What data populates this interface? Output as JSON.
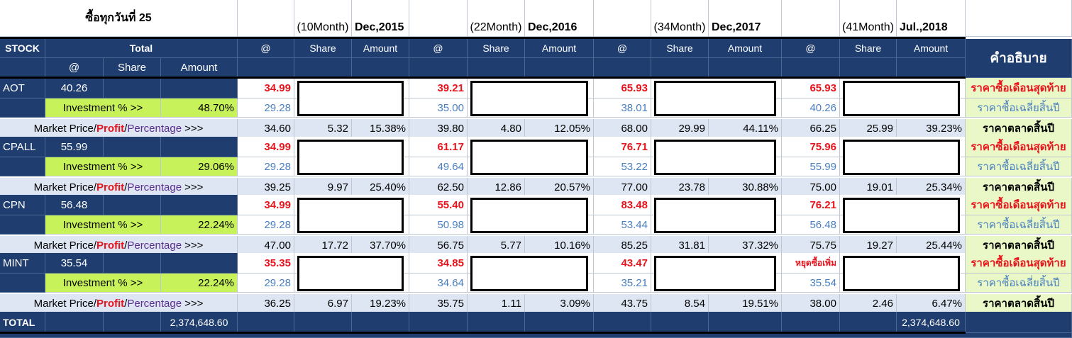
{
  "header": {
    "title": "ซื้อทุกวันที่ 25",
    "periods": [
      {
        "months": "(10Month)",
        "date": "Dec,2015"
      },
      {
        "months": "(22Month)",
        "date": "Dec,2016"
      },
      {
        "months": "(34Month)",
        "date": "Dec,2017"
      },
      {
        "months": "(41Month)",
        "date": "Jul.,2018"
      }
    ]
  },
  "columns": {
    "stock": "STOCK",
    "total": "Total",
    "at": "@",
    "share": "Share",
    "amount": "Amount",
    "description": "คำอธิบาย"
  },
  "labels": {
    "investment": "Investment % >>",
    "market_price": "Market Price",
    "profit": "Profit",
    "percentage": "Percentage",
    "arrows": ">>>",
    "sep": " / ",
    "desc_last_month": "ราคาซื้อเดือนสุดท้าย",
    "desc_avg_year": "ราคาซื้อเฉลี่ยสิ้นปี",
    "desc_market_year": "ราคาตลาดสิ้นปี"
  },
  "stocks": [
    {
      "name": "AOT",
      "avg": "40.26",
      "investment_pct": "48.70%",
      "periods": [
        {
          "last": "34.99",
          "avg": "29.28",
          "market": "34.60",
          "profit": "5.32",
          "pct": "15.38%"
        },
        {
          "last": "39.21",
          "avg": "35.00",
          "market": "39.80",
          "profit": "4.80",
          "pct": "12.05%"
        },
        {
          "last": "65.93",
          "avg": "38.01",
          "market": "68.00",
          "profit": "29.99",
          "pct": "44.11%"
        },
        {
          "last": "65.93",
          "avg": "40.26",
          "market": "66.25",
          "profit": "25.99",
          "pct": "39.23%"
        }
      ]
    },
    {
      "name": "CPALL",
      "avg": "55.99",
      "investment_pct": "29.06%",
      "periods": [
        {
          "last": "34.99",
          "avg": "29.28",
          "market": "39.25",
          "profit": "9.97",
          "pct": "25.40%"
        },
        {
          "last": "61.17",
          "avg": "49.64",
          "market": "62.50",
          "profit": "12.86",
          "pct": "20.57%"
        },
        {
          "last": "76.71",
          "avg": "53.22",
          "market": "77.00",
          "profit": "23.78",
          "pct": "30.88%"
        },
        {
          "last": "75.96",
          "avg": "55.99",
          "market": "75.00",
          "profit": "19.01",
          "pct": "25.34%"
        }
      ]
    },
    {
      "name": "CPN",
      "avg": "56.48",
      "investment_pct": "22.24%",
      "periods": [
        {
          "last": "34.99",
          "avg": "29.28",
          "market": "47.00",
          "profit": "17.72",
          "pct": "37.70%"
        },
        {
          "last": "55.40",
          "avg": "50.98",
          "market": "56.75",
          "profit": "5.77",
          "pct": "10.16%"
        },
        {
          "last": "83.48",
          "avg": "53.44",
          "market": "85.25",
          "profit": "31.81",
          "pct": "37.32%"
        },
        {
          "last": "76.21",
          "avg": "56.48",
          "market": "75.75",
          "profit": "19.27",
          "pct": "25.44%"
        }
      ]
    },
    {
      "name": "MINT",
      "avg": "35.54",
      "investment_pct": "22.24%",
      "periods": [
        {
          "last": "35.35",
          "avg": "29.28",
          "market": "36.25",
          "profit": "6.97",
          "pct": "19.23%"
        },
        {
          "last": "34.85",
          "avg": "34.64",
          "market": "35.75",
          "profit": "1.11",
          "pct": "3.09%"
        },
        {
          "last": "43.47",
          "avg": "35.21",
          "market": "43.75",
          "profit": "8.54",
          "pct": "19.51%"
        },
        {
          "last": "หยุดซื้อเพิ่ม",
          "avg": "35.54",
          "market": "38.00",
          "profit": "2.46",
          "pct": "6.47%"
        }
      ]
    }
  ],
  "totals": {
    "label": "TOTAL",
    "amount": "2,374,648.60",
    "amount_jul2018": "2,374,648.60"
  }
}
